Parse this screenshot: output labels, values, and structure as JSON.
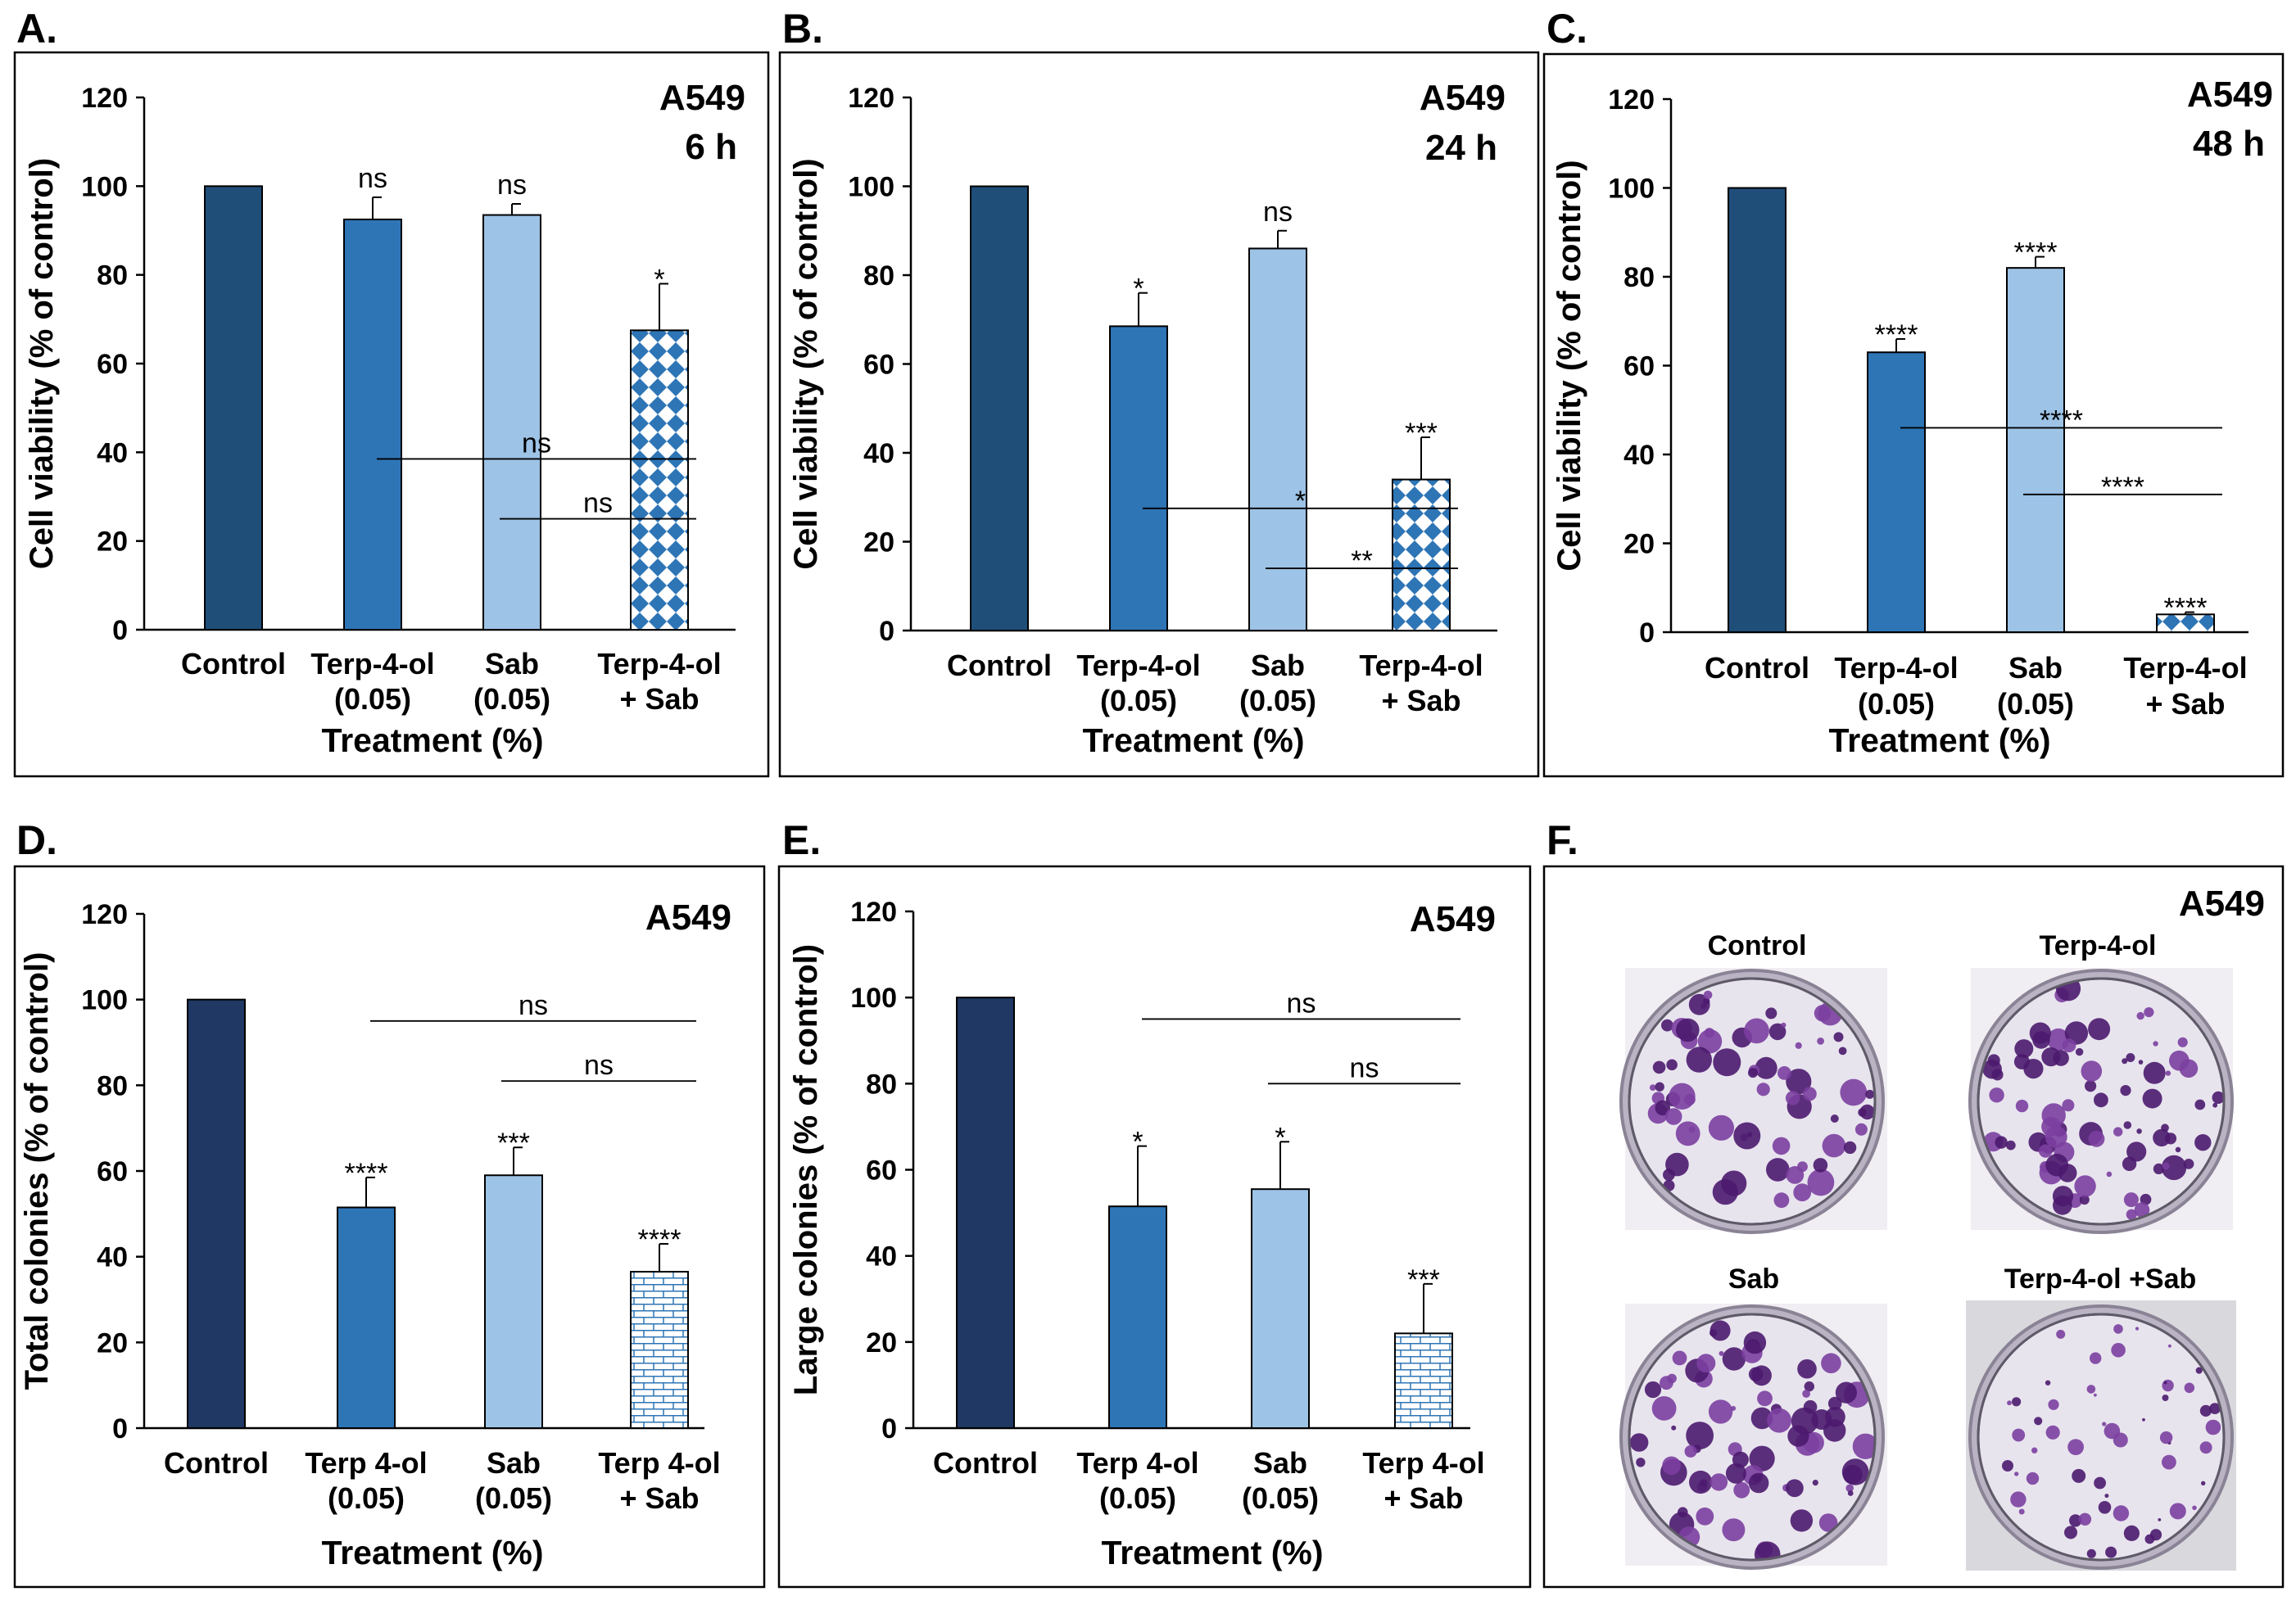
{
  "colors": {
    "control": "#1f4e79",
    "control_dark": "#1f3864",
    "terp": "#2e75b6",
    "sab": "#9dc3e6",
    "combo_line": "#2e75b6",
    "stain_dark": "#4b1a6e",
    "stain_mid": "#7b3fa0",
    "dish_bg": "#e8e4ee"
  },
  "chart_data": [
    {
      "panel": "A.",
      "type": "bar",
      "cell_line": "A549",
      "time": "6 h",
      "ylabel": "Cell viability (% of control)",
      "xlabel": "Treatment (%)",
      "ylim": [
        0,
        120
      ],
      "yticks": [
        "0",
        "20",
        "40",
        "60",
        "80",
        "100",
        "120"
      ],
      "categories": [
        [
          "Control"
        ],
        [
          "Terp-4-ol",
          "(0.05)"
        ],
        [
          "Sab",
          "(0.05)"
        ],
        [
          "Terp-4-ol",
          "+ Sab"
        ]
      ],
      "values": [
        100,
        92.5,
        93.5,
        67.5
      ],
      "errors": [
        0,
        5,
        2.5,
        10.5
      ],
      "fills": [
        "control",
        "terp",
        "sab",
        "diamond"
      ],
      "significance": [
        "",
        "ns",
        "ns",
        "*"
      ],
      "comparisons": [
        {
          "from": 1,
          "to": 3,
          "y": 38.5,
          "label": "ns"
        },
        {
          "from": 2,
          "to": 3,
          "y": 25,
          "label": "ns"
        }
      ]
    },
    {
      "panel": "B.",
      "type": "bar",
      "cell_line": "A549",
      "time": "24 h",
      "ylabel": "Cell viability (% of control)",
      "xlabel": "Treatment (%)",
      "ylim": [
        0,
        120
      ],
      "yticks": [
        "0",
        "20",
        "40",
        "60",
        "80",
        "100",
        "120"
      ],
      "categories": [
        [
          "Control"
        ],
        [
          "Terp-4-ol",
          "(0.05)"
        ],
        [
          "Sab",
          "(0.05)"
        ],
        [
          "Terp-4-ol",
          "+ Sab"
        ]
      ],
      "values": [
        100,
        68.5,
        86,
        34
      ],
      "errors": [
        0,
        7.5,
        4,
        9.5
      ],
      "fills": [
        "control",
        "terp",
        "sab",
        "diamond"
      ],
      "significance": [
        "",
        "*",
        "ns",
        "***"
      ],
      "comparisons": [
        {
          "from": 1,
          "to": 3,
          "y": 27.5,
          "label": "*"
        },
        {
          "from": 2,
          "to": 3,
          "y": 14,
          "label": "**"
        }
      ]
    },
    {
      "panel": "C.",
      "type": "bar",
      "cell_line": "A549",
      "time": "48 h",
      "ylabel": "Cell viability (% of control)",
      "xlabel": "Treatment (%)",
      "ylim": [
        0,
        120
      ],
      "yticks": [
        "0",
        "20",
        "40",
        "60",
        "80",
        "100",
        "120"
      ],
      "categories": [
        [
          "Control"
        ],
        [
          "Terp-4-ol",
          "(0.05)"
        ],
        [
          "Sab",
          "(0.05)"
        ],
        [
          "Terp-4-ol",
          "+ Sab"
        ]
      ],
      "values": [
        100,
        63,
        82,
        4
      ],
      "errors": [
        0,
        3,
        2.5,
        0.5
      ],
      "fills": [
        "control",
        "terp",
        "sab",
        "diamond"
      ],
      "significance": [
        "",
        "****",
        "****",
        "****"
      ],
      "comparisons": [
        {
          "from": 1,
          "to": 3,
          "y": 46,
          "label": "****"
        },
        {
          "from": 2,
          "to": 3,
          "y": 31,
          "label": "****"
        }
      ]
    },
    {
      "panel": "D.",
      "type": "bar",
      "cell_line": "A549",
      "time": "",
      "ylabel": "Total colonies (% of control)",
      "xlabel": "Treatment (%)",
      "ylim": [
        0,
        120
      ],
      "yticks": [
        "0",
        "20",
        "40",
        "60",
        "80",
        "100",
        "120"
      ],
      "categories": [
        [
          "Control"
        ],
        [
          "Terp 4-ol",
          "(0.05)"
        ],
        [
          "Sab",
          "(0.05)"
        ],
        [
          "Terp 4-ol",
          "+ Sab"
        ]
      ],
      "values": [
        100,
        51.5,
        59,
        36.5
      ],
      "errors": [
        0,
        7,
        6.5,
        6.5
      ],
      "fills": [
        "control_dark",
        "terp",
        "sab",
        "brick"
      ],
      "significance": [
        "",
        "****",
        "***",
        "****"
      ],
      "comparisons": [
        {
          "from": 1,
          "to": 3,
          "y": 95,
          "label": "ns"
        },
        {
          "from": 2,
          "to": 3,
          "y": 81,
          "label": "ns"
        }
      ]
    },
    {
      "panel": "E.",
      "type": "bar",
      "cell_line": "A549",
      "time": "",
      "ylabel": "Large colonies (% of control)",
      "xlabel": "Treatment (%)",
      "ylim": [
        0,
        120
      ],
      "yticks": [
        "0",
        "20",
        "40",
        "60",
        "80",
        "100",
        "120"
      ],
      "categories": [
        [
          "Control"
        ],
        [
          "Terp 4-ol",
          "(0.05)"
        ],
        [
          "Sab",
          "(0.05)"
        ],
        [
          "Terp 4-ol",
          "+ Sab"
        ]
      ],
      "values": [
        100,
        51.5,
        55.5,
        22
      ],
      "errors": [
        0,
        14,
        11,
        11.5
      ],
      "fills": [
        "control_dark",
        "terp",
        "sab",
        "brick"
      ],
      "significance": [
        "",
        "*",
        "*",
        "***"
      ],
      "comparisons": [
        {
          "from": 1,
          "to": 3,
          "y": 95,
          "label": "ns"
        },
        {
          "from": 2,
          "to": 3,
          "y": 80,
          "label": "ns"
        }
      ]
    }
  ],
  "panel_f": {
    "panel": "F.",
    "cell_line": "A549",
    "dishes": [
      "Control",
      "Terp-4-ol",
      "Sab",
      "Terp-4-ol +Sab"
    ]
  }
}
